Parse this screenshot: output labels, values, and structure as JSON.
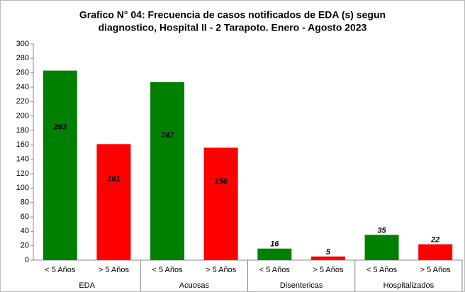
{
  "chart_data": {
    "type": "bar",
    "title": [
      "Grafico N° 04: Frecuencia de casos notificados de EDA (s) segun",
      "diagnostico, Hospital II - 2 Tarapoto. Enero - Agosto 2023"
    ],
    "categories": [
      "EDA",
      "Acuosas",
      "Disentericas",
      "Hospitalizados"
    ],
    "series": [
      {
        "name": "< 5 Años",
        "color": "#008000",
        "values": [
          263,
          247,
          16,
          35
        ]
      },
      {
        "name": "> 5 Años",
        "color": "#ff0000",
        "values": [
          161,
          156,
          5,
          22
        ]
      }
    ],
    "ylim": [
      0,
      300
    ],
    "yticks": [
      0,
      20,
      40,
      60,
      80,
      100,
      120,
      140,
      160,
      180,
      200,
      220,
      240,
      260,
      280,
      300
    ],
    "grid": false
  }
}
